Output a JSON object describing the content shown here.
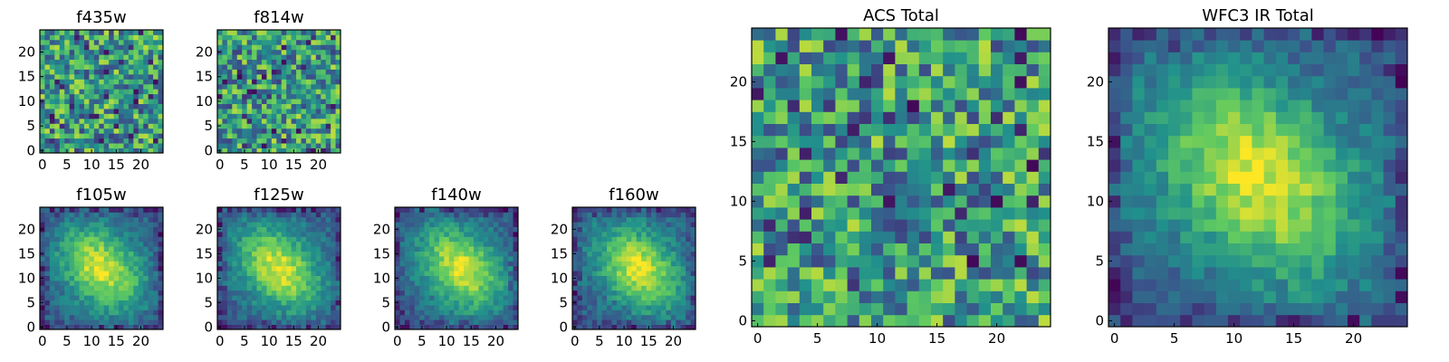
{
  "figure": {
    "colormap": "viridis",
    "colormap_stops": [
      "#440154",
      "#3b528b",
      "#21918c",
      "#5ec962",
      "#fde725"
    ],
    "frame_color": "#000000"
  },
  "chart_data": [
    {
      "type": "heatmap",
      "title": "f435w",
      "xlim": [
        0,
        25
      ],
      "ylim": [
        0,
        25
      ],
      "xticks": [
        0,
        5,
        10,
        15,
        20
      ],
      "yticks": [
        0,
        5,
        10,
        15,
        20
      ],
      "grid": false,
      "source_profile": "noise"
    },
    {
      "type": "heatmap",
      "title": "f814w",
      "xlim": [
        0,
        25
      ],
      "ylim": [
        0,
        25
      ],
      "xticks": [
        0,
        5,
        10,
        15,
        20
      ],
      "yticks": [
        0,
        5,
        10,
        15,
        20
      ],
      "grid": false,
      "source_profile": "noise"
    },
    {
      "type": "heatmap",
      "title": "f105w",
      "xlim": [
        0,
        25
      ],
      "ylim": [
        0,
        25
      ],
      "xticks": [
        0,
        5,
        10,
        15,
        20
      ],
      "yticks": [
        0,
        5,
        10,
        15,
        20
      ],
      "grid": false,
      "source_center": [
        12,
        12
      ],
      "source_profile": "extended"
    },
    {
      "type": "heatmap",
      "title": "f125w",
      "xlim": [
        0,
        25
      ],
      "ylim": [
        0,
        25
      ],
      "xticks": [
        0,
        5,
        10,
        15,
        20
      ],
      "yticks": [
        0,
        5,
        10,
        15,
        20
      ],
      "grid": false,
      "source_center": [
        12,
        12
      ],
      "source_profile": "extended"
    },
    {
      "type": "heatmap",
      "title": "f140w",
      "xlim": [
        0,
        25
      ],
      "ylim": [
        0,
        25
      ],
      "xticks": [
        0,
        5,
        10,
        15,
        20
      ],
      "yticks": [
        0,
        5,
        10,
        15,
        20
      ],
      "grid": false,
      "source_center": [
        13,
        12
      ],
      "source_profile": "extended"
    },
    {
      "type": "heatmap",
      "title": "f160w",
      "xlim": [
        0,
        25
      ],
      "ylim": [
        0,
        25
      ],
      "xticks": [
        0,
        5,
        10,
        15,
        20
      ],
      "yticks": [
        0,
        5,
        10,
        15,
        20
      ],
      "grid": false,
      "source_center": [
        13,
        12
      ],
      "source_profile": "extended"
    },
    {
      "type": "heatmap",
      "title": "ACS Total",
      "xlim": [
        0,
        25
      ],
      "ylim": [
        0,
        25
      ],
      "xticks": [
        0,
        5,
        10,
        15,
        20
      ],
      "yticks": [
        0,
        5,
        10,
        15,
        20
      ],
      "grid": false,
      "source_profile": "noise"
    },
    {
      "type": "heatmap",
      "title": "WFC3 IR Total",
      "xlim": [
        0,
        25
      ],
      "ylim": [
        0,
        25
      ],
      "xticks": [
        0,
        5,
        10,
        15,
        20
      ],
      "yticks": [
        0,
        5,
        10,
        15,
        20
      ],
      "grid": false,
      "source_center": [
        12,
        12
      ],
      "source_profile": "extended"
    }
  ]
}
